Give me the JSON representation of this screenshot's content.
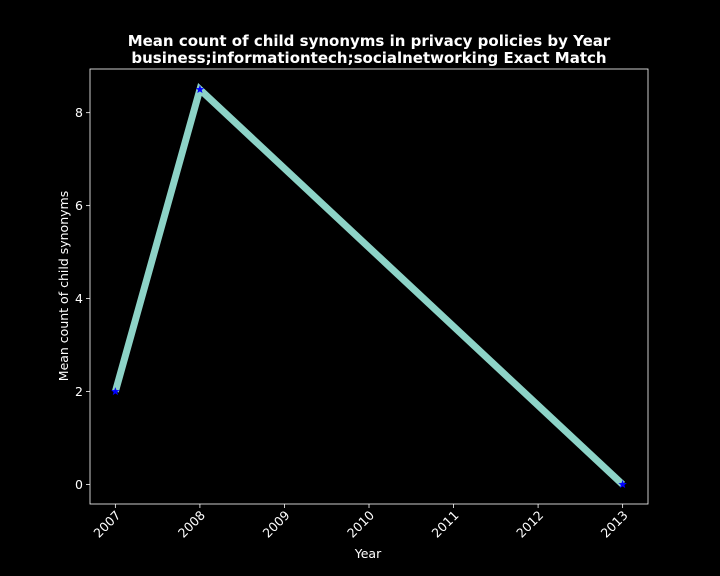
{
  "chart_data": {
    "type": "line",
    "title": "Mean count of child synonyms in privacy policies by Year",
    "subtitle": "business;informationtech;socialnetworking Exact Match",
    "xlabel": "Year",
    "ylabel": "Mean count of child synonyms",
    "x_ticks": [
      "2007",
      "2008",
      "2009",
      "2010",
      "2011",
      "2012",
      "2013"
    ],
    "y_ticks": [
      "0",
      "2",
      "4",
      "6",
      "8"
    ],
    "xlim": [
      2006.7,
      2013.3
    ],
    "ylim": [
      -0.42,
      8.94
    ],
    "grid": false,
    "series": [
      {
        "x": [
          2007,
          2008,
          2013
        ],
        "y": [
          2.0,
          8.5,
          0.0
        ],
        "line_color": "#8dd3c7",
        "marker_color": "#0000ff",
        "marker": "star"
      }
    ]
  },
  "colors": {
    "background": "#000000",
    "axes": "#ffffff",
    "text": "#ffffff"
  }
}
